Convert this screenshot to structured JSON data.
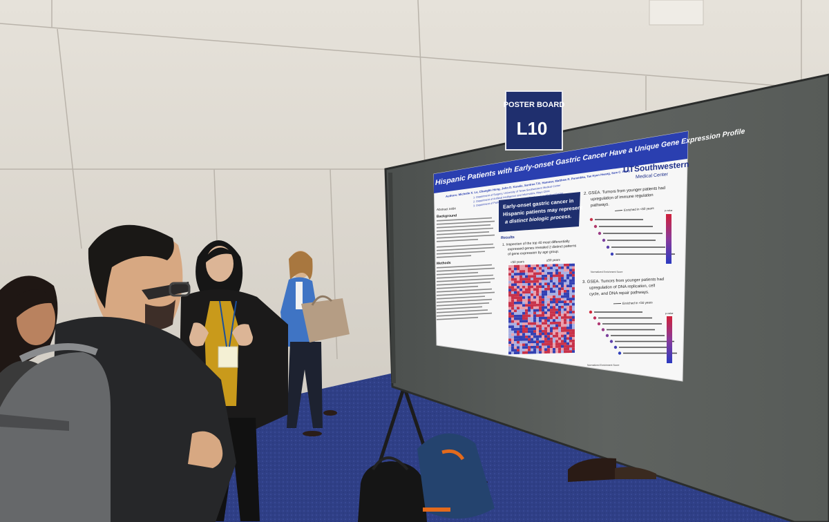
{
  "board_sign": {
    "caption": "POSTER BOARD",
    "number": "L10"
  },
  "poster": {
    "title": "Hispanic Patients with Early-onset Gastric Cancer Have a Unique Gene Expression Profile",
    "authors": "Authors: Michelle X. Le, Changlin Hong, John D. Karalis, Suntrea T.G. Hammer, Matthew R. Porembka, Tae Hyun Hwang, Sam C. Wang",
    "affiliation_1": "1. Department of Surgery, University of Texas Southwestern Medical Center",
    "affiliation_2": "2. Department of Artificial Intelligence and Informatics, Mayo Clinic",
    "affiliation_3": "3. Department of Pathology, University of Texas Southwestern Medical Center",
    "logo_main": "UTSouthwestern",
    "logo_sub": "Medical Center",
    "abstract_label": "Abstract #464",
    "background_heading": "Background",
    "methods_heading": "Methods",
    "highlight_box": [
      "Early-onset gastric cancer in",
      "Hispanic patients may represent",
      "a distinct biologic process."
    ],
    "results_heading": "Results",
    "result_1": [
      "1.  Inspection of the top 40 most differentially",
      "expressed genes revealed 2 distinct patterns",
      "of gene expression by age group."
    ],
    "heatmap_label_left": "<50 years",
    "heatmap_label_right": "≥50 years",
    "result_2": [
      "2.  GSEA. Tumors from younger patients had",
      "upregulation of immune regulation",
      "pathways."
    ],
    "enriched_label": "Enriched in <50 years",
    "result_3": [
      "3.  GSEA. Tumors from younger patients had",
      "upregulation of DNA replication, cell",
      "cycle, and DNA repair pathways."
    ],
    "legend_title": "p-value",
    "axis_label": "Normalized Enrichment Score"
  },
  "colors": {
    "poster_blue": "#2a3fb0",
    "sign_blue": "#1f2f6e",
    "board_gray": "#5c605d",
    "carpet": "#2f3f86",
    "wall": "#dcd7cf"
  }
}
